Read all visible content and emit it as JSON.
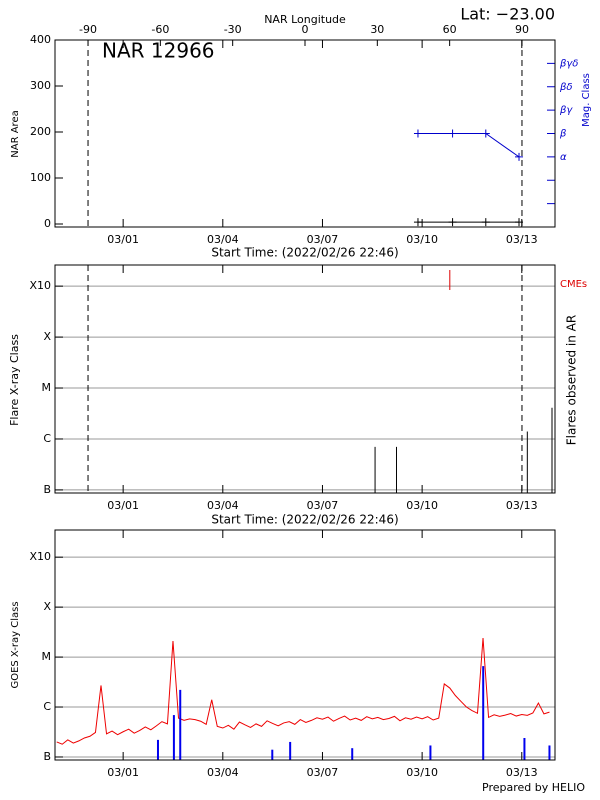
{
  "chart_data": [
    {
      "type": "line",
      "title": "NAR 12966",
      "annotation": "Lat: −23.00",
      "x2label": "NAR Longitude",
      "x2lim": [
        -103.7,
        103.7
      ],
      "x2ticks": [
        -90,
        -60,
        -30,
        0,
        30,
        60,
        90
      ],
      "xlabel": "Start Time: (2022/02/26 22:46)",
      "xlim": [
        "2022-02-26T22:46",
        "2022-03-14T00:00"
      ],
      "xticks": [
        {
          "value": "2022-03-01T00:00",
          "label": "03/01"
        },
        {
          "value": "2022-03-04T00:00",
          "label": "03/04"
        },
        {
          "value": "2022-03-07T00:00",
          "label": "03/07"
        },
        {
          "value": "2022-03-10T00:00",
          "label": "03/10"
        },
        {
          "value": "2022-03-13T00:00",
          "label": "03/13"
        }
      ],
      "ylabel": "NAR Area",
      "ylim": [
        -6.5,
        400
      ],
      "yticks": [
        0,
        100,
        200,
        300,
        400
      ],
      "y2label": "Mag. Class",
      "y2color": "#0000cc",
      "y2lim": [
        0,
        8
      ],
      "y2ticks": [
        {
          "value": 1,
          "label": null
        },
        {
          "value": 2,
          "label": null
        },
        {
          "value": 3,
          "label": "α"
        },
        {
          "value": 4,
          "label": "β"
        },
        {
          "value": 5,
          "label": "βγ"
        },
        {
          "value": 6,
          "label": "βδ"
        },
        {
          "value": 7,
          "label": "βγδ"
        }
      ],
      "limb_lines": true,
      "series": [
        {
          "color": "#000000",
          "style": "line",
          "x": [
            "2022-03-09T21:00",
            "2022-03-10T22:00",
            "2022-03-11T22:00",
            "2022-03-12T22:00"
          ],
          "values": [
            4,
            4,
            4,
            4
          ]
        },
        {
          "color": "#0000cc",
          "style": "line",
          "axis": "y2",
          "x": [
            "2022-03-09T21:00",
            "2022-03-10T22:00",
            "2022-03-11T22:00",
            "2022-03-12T22:00"
          ],
          "values": [
            4,
            4,
            4,
            3
          ]
        }
      ]
    },
    {
      "type": "stem",
      "ylabel": "Flare X-ray Class",
      "y2label": "Flares observed in AR",
      "xlabel": "Start Time: (2022/02/26 22:46)",
      "xlim": [
        "2022-02-26T22:46",
        "2022-03-14T00:00"
      ],
      "xticks": [
        {
          "value": "2022-03-01T00:00",
          "label": "03/01"
        },
        {
          "value": "2022-03-04T00:00",
          "label": "03/04"
        },
        {
          "value": "2022-03-07T00:00",
          "label": "03/07"
        },
        {
          "value": "2022-03-10T00:00",
          "label": "03/10"
        },
        {
          "value": "2022-03-13T00:00",
          "label": "03/13"
        }
      ],
      "ylog": true,
      "ylim": [
        8.7e-08,
        0.0026
      ],
      "grid": true,
      "yticks": [
        {
          "value": 1e-07,
          "label": "B"
        },
        {
          "value": 1e-06,
          "label": "C"
        },
        {
          "value": 1e-05,
          "label": "M"
        },
        {
          "value": 0.0001,
          "label": "X"
        },
        {
          "value": 0.001,
          "label": "X10"
        }
      ],
      "limb_lines": true,
      "series": [
        {
          "color": "#000000",
          "style": "stem",
          "x": [
            "2022-03-08T14:00",
            "2022-03-09T05:30",
            "2022-03-13T04:00",
            "2022-03-13T21:50"
          ],
          "values": [
            7e-07,
            7e-07,
            1.4e-06,
            4.1e-06
          ]
        },
        {
          "name": "CMEs",
          "color": "#dd0000",
          "style": "cme",
          "x": [
            "2022-03-10T20:00"
          ]
        }
      ]
    },
    {
      "type": "line",
      "ylabel": "GOES X-ray Class",
      "footer": "Prepared by HELIO",
      "xlim": [
        "2022-02-26T22:46",
        "2022-03-14T00:00"
      ],
      "xticks": [
        {
          "value": "2022-03-01T00:00",
          "label": "03/01"
        },
        {
          "value": "2022-03-04T00:00",
          "label": "03/04"
        },
        {
          "value": "2022-03-07T00:00",
          "label": "03/07"
        },
        {
          "value": "2022-03-10T00:00",
          "label": "03/10"
        },
        {
          "value": "2022-03-13T00:00",
          "label": "03/13"
        }
      ],
      "ylog": true,
      "ylim": [
        8.7e-08,
        0.0035
      ],
      "grid": true,
      "yticks": [
        {
          "value": 1e-07,
          "label": "B"
        },
        {
          "value": 1e-06,
          "label": "C"
        },
        {
          "value": 1e-05,
          "label": "M"
        },
        {
          "value": 0.0001,
          "label": "X"
        },
        {
          "value": 0.001,
          "label": "X10"
        }
      ],
      "series": [
        {
          "color": "#ee0000",
          "style": "line",
          "x": [
            "2022-02-27T00:00",
            "2022-02-27T04:00",
            "2022-02-27T08:00",
            "2022-02-27T12:00",
            "2022-02-27T16:00",
            "2022-02-27T20:00",
            "2022-02-28T00:00",
            "2022-02-28T04:00",
            "2022-02-28T08:00",
            "2022-02-28T12:00",
            "2022-02-28T16:00",
            "2022-02-28T20:00",
            "2022-03-01T00:00",
            "2022-03-01T04:00",
            "2022-03-01T08:00",
            "2022-03-01T12:00",
            "2022-03-01T16:00",
            "2022-03-01T20:00",
            "2022-03-02T00:00",
            "2022-03-02T04:00",
            "2022-03-02T08:00",
            "2022-03-02T12:00",
            "2022-03-02T16:00",
            "2022-03-02T20:00",
            "2022-03-03T00:00",
            "2022-03-03T04:00",
            "2022-03-03T08:00",
            "2022-03-03T12:00",
            "2022-03-03T16:00",
            "2022-03-03T20:00",
            "2022-03-04T00:00",
            "2022-03-04T04:00",
            "2022-03-04T08:00",
            "2022-03-04T12:00",
            "2022-03-04T16:00",
            "2022-03-04T20:00",
            "2022-03-05T00:00",
            "2022-03-05T04:00",
            "2022-03-05T08:00",
            "2022-03-05T12:00",
            "2022-03-05T16:00",
            "2022-03-05T20:00",
            "2022-03-06T00:00",
            "2022-03-06T04:00",
            "2022-03-06T08:00",
            "2022-03-06T12:00",
            "2022-03-06T16:00",
            "2022-03-06T20:00",
            "2022-03-07T00:00",
            "2022-03-07T04:00",
            "2022-03-07T08:00",
            "2022-03-07T12:00",
            "2022-03-07T16:00",
            "2022-03-07T20:00",
            "2022-03-08T00:00",
            "2022-03-08T04:00",
            "2022-03-08T08:00",
            "2022-03-08T12:00",
            "2022-03-08T16:00",
            "2022-03-08T20:00",
            "2022-03-09T00:00",
            "2022-03-09T04:00",
            "2022-03-09T08:00",
            "2022-03-09T12:00",
            "2022-03-09T16:00",
            "2022-03-09T20:00",
            "2022-03-10T00:00",
            "2022-03-10T04:00",
            "2022-03-10T08:00",
            "2022-03-10T12:00",
            "2022-03-10T16:00",
            "2022-03-10T20:00",
            "2022-03-11T00:00",
            "2022-03-11T04:00",
            "2022-03-11T08:00",
            "2022-03-11T12:00",
            "2022-03-11T16:00",
            "2022-03-11T20:00",
            "2022-03-12T00:00",
            "2022-03-12T04:00",
            "2022-03-12T08:00",
            "2022-03-12T12:00",
            "2022-03-12T16:00",
            "2022-03-12T20:00",
            "2022-03-13T00:00",
            "2022-03-13T04:00",
            "2022-03-13T08:00",
            "2022-03-13T12:00",
            "2022-03-13T16:00",
            "2022-03-13T20:00"
          ],
          "values": [
            2e-07,
            1.8e-07,
            2.2e-07,
            1.9e-07,
            2.1e-07,
            2.4e-07,
            2.6e-07,
            3.1e-07,
            2.7e-06,
            2.9e-07,
            3.3e-07,
            2.8e-07,
            3.2e-07,
            3.6e-07,
            3e-07,
            3.4e-07,
            4e-07,
            3.5e-07,
            4.2e-07,
            5.1e-07,
            4.6e-07,
            2.1e-05,
            6e-07,
            5.4e-07,
            5.8e-07,
            5.6e-07,
            5.2e-07,
            4.5e-07,
            1.4e-06,
            4.1e-07,
            3.8e-07,
            4.3e-07,
            3.6e-07,
            5e-07,
            4.4e-07,
            3.9e-07,
            4.6e-07,
            4.1e-07,
            5.3e-07,
            4.7e-07,
            4.2e-07,
            4.8e-07,
            5.1e-07,
            4.5e-07,
            5.6e-07,
            4.9e-07,
            5.4e-07,
            6.1e-07,
            5.7e-07,
            6.3e-07,
            5.2e-07,
            5.9e-07,
            6.6e-07,
            5.5e-07,
            6e-07,
            5.4e-07,
            6.4e-07,
            5.8e-07,
            6.2e-07,
            5.6e-07,
            5.9e-07,
            6.5e-07,
            5.3e-07,
            6.1e-07,
            5.7e-07,
            6.3e-07,
            5.8e-07,
            6.4e-07,
            5.5e-07,
            6e-07,
            2.9e-06,
            2.4e-06,
            1.7e-06,
            1.3e-06,
            1e-06,
            8.5e-07,
            7.5e-07,
            2.4e-05,
            6.2e-07,
            7e-07,
            6.5e-07,
            6.9e-07,
            7.4e-07,
            6.6e-07,
            7.1e-07,
            6.8e-07,
            7.6e-07,
            1.2e-06,
            7.3e-07,
            7.9e-07
          ]
        },
        {
          "color": "#0000ee",
          "style": "stem",
          "x": [
            "2022-03-02T01:10",
            "2022-03-02T12:40",
            "2022-03-02T17:15",
            "2022-03-05T11:45",
            "2022-03-06T00:40",
            "2022-03-07T21:30",
            "2022-03-10T06:00",
            "2022-03-11T20:08",
            "2022-03-13T01:55",
            "2022-03-13T20:00"
          ],
          "values": [
            2.2e-07,
            6.9e-07,
            2.2e-06,
            1.4e-07,
            2e-07,
            1.5e-07,
            1.7e-07,
            6.6e-06,
            2.4e-07,
            1.7e-07
          ]
        }
      ]
    }
  ]
}
